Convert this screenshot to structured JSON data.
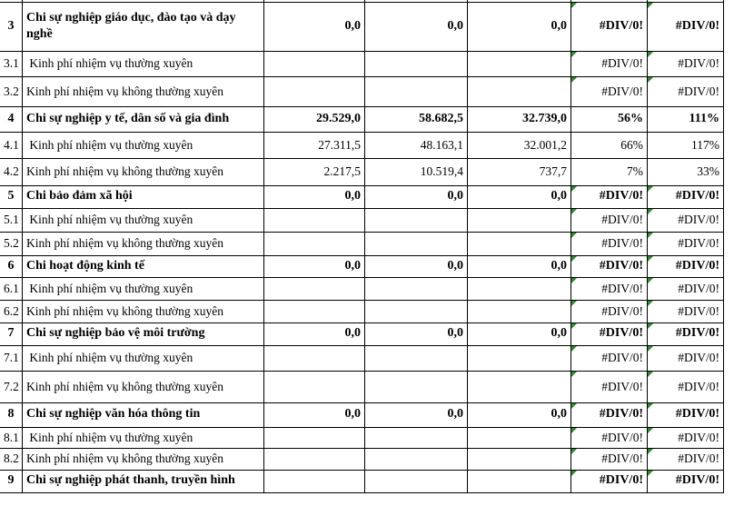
{
  "app": {
    "view": "spreadsheet-table-fragment",
    "language": "vi"
  },
  "colors": {
    "grid_line": "#000000",
    "text": "#000000",
    "background": "#ffffff",
    "error_indicator": "#2e8b2e"
  },
  "error_value": "#DIV/0!",
  "table": {
    "rows": [
      {
        "no": "3",
        "category": true,
        "label": "Chi sự nghiệp giáo dục, đào tạo và dạy nghề",
        "values": [
          "0,0",
          "0,0",
          "0,0"
        ],
        "ratios": [
          "#DIV/0!",
          "#DIV/0!"
        ]
      },
      {
        "no": "3.1",
        "category": false,
        "label": " Kinh phí nhiệm vụ thường xuyên",
        "values": [
          "",
          "",
          ""
        ],
        "ratios": [
          "#DIV/0!",
          "#DIV/0!"
        ]
      },
      {
        "no": "3.2",
        "category": false,
        "label": "Kinh phí nhiệm vụ không thường xuyên",
        "values": [
          "",
          "",
          ""
        ],
        "ratios": [
          "#DIV/0!",
          "#DIV/0!"
        ]
      },
      {
        "no": "4",
        "category": true,
        "label": "Chi sự nghiệp y tế, dân số và gia đình",
        "values": [
          "29.529,0",
          "58.682,5",
          "32.739,0"
        ],
        "ratios": [
          "56%",
          "111%"
        ]
      },
      {
        "no": "4.1",
        "category": false,
        "label": " Kinh phí nhiệm vụ thường xuyên",
        "values": [
          "27.311,5",
          "48.163,1",
          "32.001,2"
        ],
        "ratios": [
          "66%",
          "117%"
        ]
      },
      {
        "no": "4.2",
        "category": false,
        "label": "Kinh phí nhiệm vụ không thường xuyên",
        "values": [
          "2.217,5",
          "10.519,4",
          "737,7"
        ],
        "ratios": [
          "7%",
          "33%"
        ]
      },
      {
        "no": "5",
        "category": true,
        "label": "Chi bảo đảm xã hội",
        "values": [
          "0,0",
          "0,0",
          "0,0"
        ],
        "ratios": [
          "#DIV/0!",
          "#DIV/0!"
        ]
      },
      {
        "no": "5.1",
        "category": false,
        "label": " Kinh phí nhiệm vụ thường xuyên",
        "values": [
          "",
          "",
          ""
        ],
        "ratios": [
          "#DIV/0!",
          "#DIV/0!"
        ]
      },
      {
        "no": "5.2",
        "category": false,
        "label": "Kinh phí nhiệm vụ không thường xuyên",
        "values": [
          "",
          "",
          ""
        ],
        "ratios": [
          "#DIV/0!",
          "#DIV/0!"
        ]
      },
      {
        "no": "6",
        "category": true,
        "label": "Chi hoạt động kinh tế",
        "values": [
          "0,0",
          "0,0",
          "0,0"
        ],
        "ratios": [
          "#DIV/0!",
          "#DIV/0!"
        ]
      },
      {
        "no": "6.1",
        "category": false,
        "label": " Kinh phí nhiệm vụ thường xuyên",
        "values": [
          "",
          "",
          ""
        ],
        "ratios": [
          "#DIV/0!",
          "#DIV/0!"
        ]
      },
      {
        "no": "6.2",
        "category": false,
        "label": "Kinh phí nhiệm vụ không thường xuyên",
        "values": [
          "",
          "",
          ""
        ],
        "ratios": [
          "#DIV/0!",
          "#DIV/0!"
        ]
      },
      {
        "no": "7",
        "category": true,
        "label": "Chi sự nghiệp bảo vệ môi trường",
        "values": [
          "0,0",
          "0,0",
          "0,0"
        ],
        "ratios": [
          "#DIV/0!",
          "#DIV/0!"
        ]
      },
      {
        "no": "7.1",
        "category": false,
        "label": " Kinh phí nhiệm vụ thường xuyên",
        "values": [
          "",
          "",
          ""
        ],
        "ratios": [
          "#DIV/0!",
          "#DIV/0!"
        ]
      },
      {
        "no": "7.2",
        "category": false,
        "label": "Kinh phí nhiệm vụ không thường xuyên",
        "values": [
          "",
          "",
          ""
        ],
        "ratios": [
          "#DIV/0!",
          "#DIV/0!"
        ]
      },
      {
        "no": "8",
        "category": true,
        "label": "Chi sự nghiệp văn hóa thông tin",
        "values": [
          "0,0",
          "0,0",
          "0,0"
        ],
        "ratios": [
          "#DIV/0!",
          "#DIV/0!"
        ]
      },
      {
        "no": "8.1",
        "category": false,
        "label": " Kinh phí nhiệm vụ thường xuyên",
        "values": [
          "",
          "",
          ""
        ],
        "ratios": [
          "#DIV/0!",
          "#DIV/0!"
        ]
      },
      {
        "no": "8.2",
        "category": false,
        "label": "Kinh phí nhiệm vụ không thường xuyên",
        "values": [
          "",
          "",
          ""
        ],
        "ratios": [
          "#DIV/0!",
          "#DIV/0!"
        ]
      },
      {
        "no": "9",
        "category": true,
        "label": "Chi sự nghiệp phát thanh, truyền hình",
        "values": [
          "",
          "",
          ""
        ],
        "ratios": [
          "#DIV/0!",
          "#DIV/0!"
        ]
      }
    ]
  }
}
